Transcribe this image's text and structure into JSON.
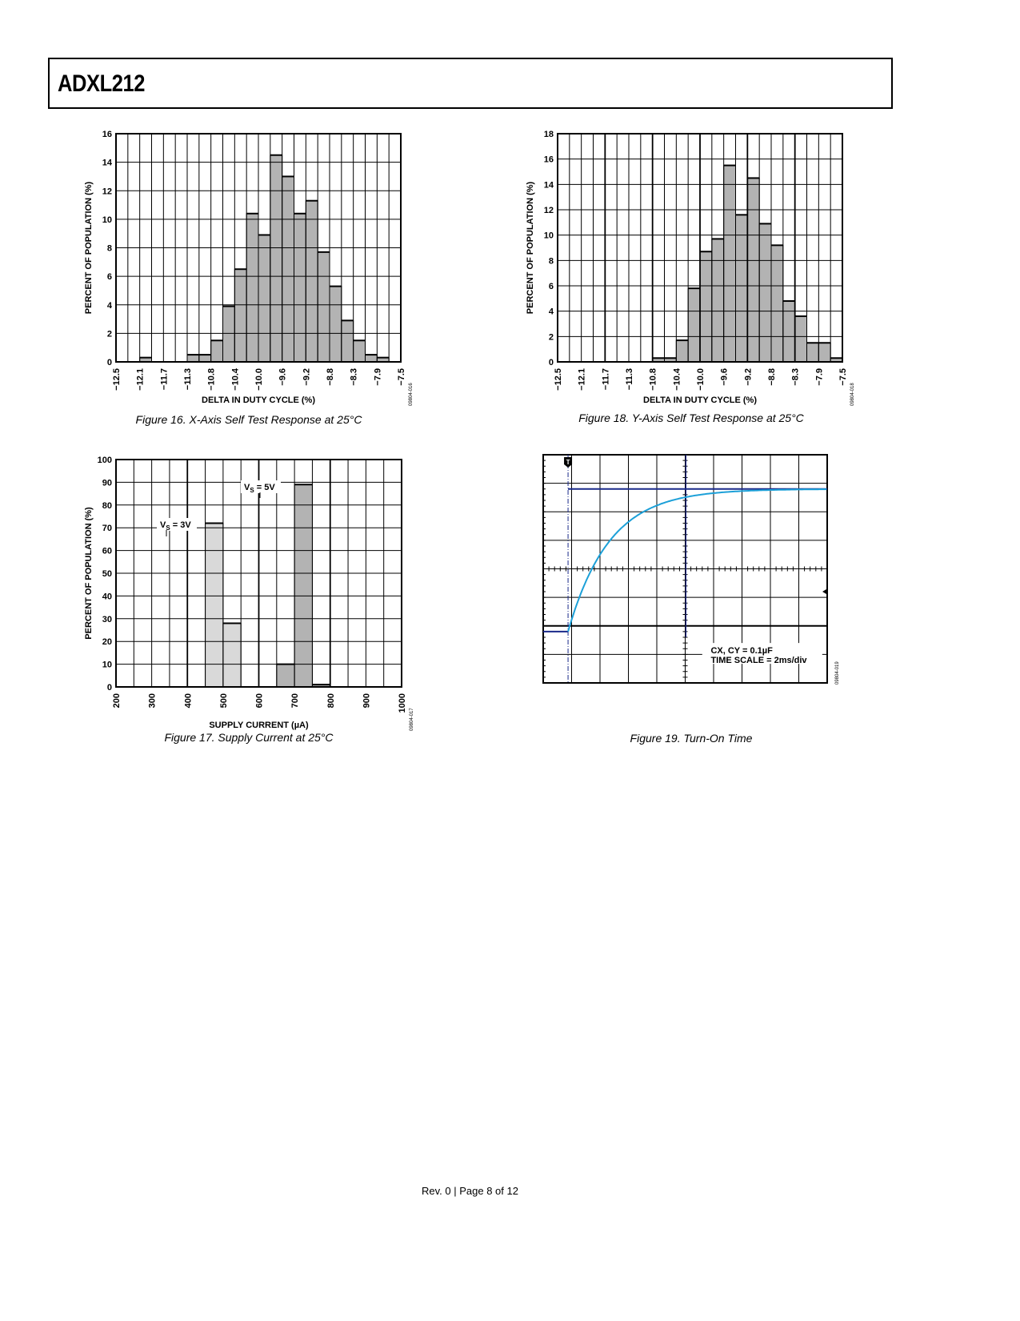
{
  "header": {
    "title": "ADXL212"
  },
  "footer": {
    "text": "Rev. 0 | Page 8 of 12"
  },
  "chart_data": [
    {
      "id": "fig16",
      "type": "bar",
      "caption": "Figure 16. X-Axis Self Test Response at 25°C",
      "xlabel": "DELTA IN DUTY CYCLE (%)",
      "ylabel": "PERCENT OF POPULATION (%)",
      "xlim": [
        -12.5,
        -7.5
      ],
      "ylim": [
        0,
        16
      ],
      "yticks": [
        0,
        2,
        4,
        6,
        8,
        10,
        12,
        14,
        16
      ],
      "xtick_labels": [
        "−12.5",
        "−12.1",
        "−11.7",
        "−11.3",
        "−10.8",
        "−10.4",
        "−10.0",
        "−9.6",
        "−9.2",
        "−8.8",
        "−8.3",
        "−7.9",
        "−7.5"
      ],
      "bins": 24,
      "series": [
        {
          "name": "X-axis",
          "color": "#b3b3b3",
          "values": [
            0,
            0,
            0.3,
            0,
            0,
            0,
            0.5,
            0.5,
            1.5,
            3.9,
            6.5,
            10.4,
            8.9,
            14.5,
            13.0,
            10.4,
            11.3,
            7.7,
            5.3,
            2.9,
            1.5,
            0.5,
            0.3,
            0
          ]
        }
      ],
      "grid": true,
      "figure_id": "09804-016"
    },
    {
      "id": "fig18",
      "type": "bar",
      "caption": "Figure 18. Y-Axis Self Test Response at 25°C",
      "xlabel": "DELTA IN DUTY CYCLE (%)",
      "ylabel": "PERCENT OF POPULATION (%)",
      "xlim": [
        -12.5,
        -7.5
      ],
      "ylim": [
        0,
        18
      ],
      "yticks": [
        0,
        2,
        4,
        6,
        8,
        10,
        12,
        14,
        16,
        18
      ],
      "xtick_labels": [
        "−12.5",
        "−12.1",
        "−11.7",
        "−11.3",
        "−10.8",
        "−10.4",
        "−10.0",
        "−9.6",
        "−9.2",
        "−8.8",
        "−8.3",
        "−7.9",
        "−7.5"
      ],
      "bins": 24,
      "series": [
        {
          "name": "Y-axis",
          "color": "#b3b3b3",
          "values": [
            0,
            0,
            0,
            0,
            0,
            0,
            0,
            0,
            0.3,
            0.3,
            1.7,
            5.8,
            8.7,
            9.7,
            15.5,
            11.6,
            14.5,
            10.9,
            9.2,
            4.8,
            3.6,
            1.5,
            1.5,
            0.3
          ]
        }
      ],
      "grid": true,
      "figure_id": "09804-018"
    },
    {
      "id": "fig17",
      "type": "bar",
      "caption": "Figure 17. Supply Current at 25°C",
      "xlabel": "SUPPLY CURRENT (µA)",
      "ylabel": "PERCENT OF POPULATION (%)",
      "xlim": [
        200,
        1000
      ],
      "ylim": [
        0,
        100
      ],
      "yticks": [
        0,
        10,
        20,
        30,
        40,
        50,
        60,
        70,
        80,
        90,
        100
      ],
      "xtick_labels": [
        "200",
        "300",
        "400",
        "500",
        "600",
        "700",
        "800",
        "900",
        "1000"
      ],
      "bins": 16,
      "series": [
        {
          "name": "VS = 3V",
          "label_main": "V",
          "label_sub": "S",
          "label_rest": " = 3V",
          "color": "#d9d9d9",
          "values": [
            0,
            0,
            0,
            0,
            0,
            72,
            28,
            0,
            0,
            0,
            0,
            0,
            0,
            0,
            0,
            0
          ]
        },
        {
          "name": "VS = 5V",
          "label_main": "V",
          "label_sub": "S",
          "label_rest": " = 5V",
          "color": "#b3b3b3",
          "values": [
            0,
            0,
            0,
            0,
            0,
            0,
            0,
            0,
            0,
            10,
            89,
            1,
            0,
            0,
            0,
            0
          ]
        }
      ],
      "grid": true,
      "figure_id": "09804-017"
    },
    {
      "id": "fig19",
      "type": "line",
      "caption": "Figure 19. Turn-On Time",
      "annotation_line1": "CX, CY = 0.1µF",
      "annotation_line2": "TIME SCALE = 2ms/div",
      "time_per_div_ms": 2,
      "xlim_ms": [
        -1.75,
        18.25
      ],
      "ylim_div": [
        -4,
        4
      ],
      "trigger_label": "T",
      "series": [
        {
          "name": "supply",
          "color": "#1a2a8a",
          "low_div": -2.2,
          "high_div": 2.8,
          "step_at_ms": 0
        },
        {
          "name": "output",
          "color": "#1ca0d8",
          "low_div": -2.2,
          "high_div": 2.8,
          "tau_ms": 2.9
        }
      ],
      "cursor_ms": 8.3,
      "figure_id": "09804-019"
    }
  ]
}
